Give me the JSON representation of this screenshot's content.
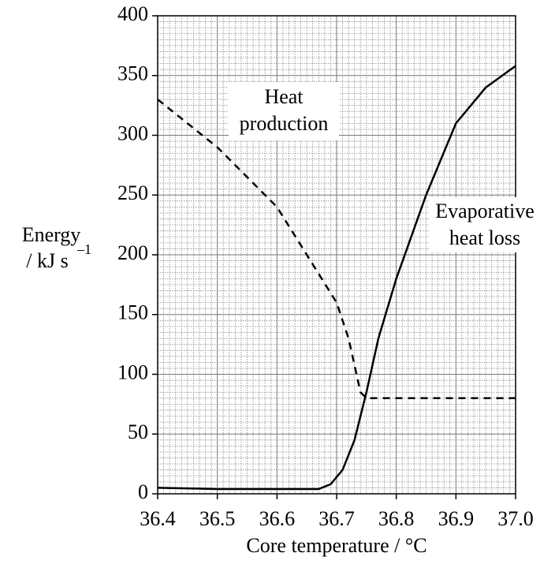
{
  "chart_data": {
    "type": "line",
    "x_label": "Core temperature / °C",
    "y_label": "Energy",
    "y_unit": "/ kJ s",
    "y_unit_exponent": "–1",
    "xlim": [
      36.4,
      37.0
    ],
    "ylim": [
      0,
      400
    ],
    "xticks": [
      36.4,
      36.5,
      36.6,
      36.7,
      36.8,
      36.9,
      {
        "value": 37.0,
        "label": "37.0"
      }
    ],
    "yticks": [
      0,
      50,
      100,
      150,
      200,
      250,
      300,
      350,
      400
    ],
    "grid": true,
    "series": [
      {
        "color": "#000000",
        "style": "dashed",
        "x": [
          36.4,
          36.5,
          36.6,
          36.65,
          36.7,
          36.72,
          36.74,
          36.75,
          36.8,
          36.9,
          37.0
        ],
        "values": [
          330,
          290,
          240,
          200,
          160,
          130,
          85,
          80,
          80,
          80,
          80
        ]
      },
      {
        "color": "#000000",
        "style": "solid",
        "x": [
          36.4,
          36.5,
          36.6,
          36.67,
          36.69,
          36.71,
          36.73,
          36.75,
          36.77,
          36.8,
          36.85,
          36.9,
          36.95,
          37.0
        ],
        "values": [
          5,
          4,
          4,
          4,
          8,
          20,
          45,
          85,
          130,
          180,
          250,
          310,
          340,
          358
        ]
      }
    ],
    "annotations": [
      {
        "lines": [
          "Heat",
          "production"
        ]
      },
      {
        "lines": [
          "Evaporative",
          "heat loss"
        ]
      }
    ]
  }
}
